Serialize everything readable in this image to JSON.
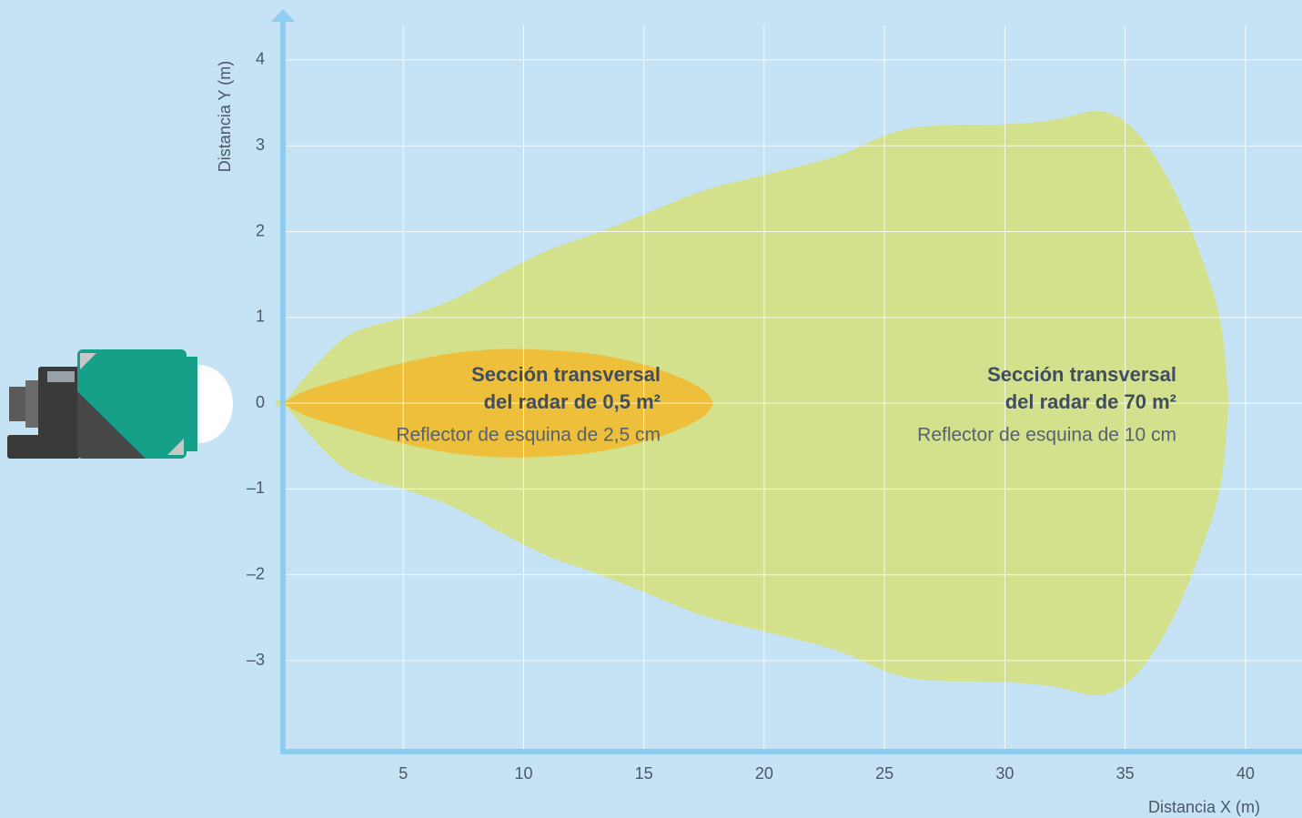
{
  "chart_data": {
    "type": "band-area",
    "xlabel": "Distancia X (m)",
    "ylabel": "Distancia Y (m)",
    "xlim": [
      0,
      42.35
    ],
    "ylim": [
      -4.06,
      4.54
    ],
    "xticks": [
      5,
      10,
      15,
      20,
      25,
      30,
      35,
      40
    ],
    "yticks": [
      {
        "value": -3,
        "label": "–3"
      },
      {
        "value": -2,
        "label": "–2"
      },
      {
        "value": -1,
        "label": "–1"
      },
      0,
      1,
      2,
      3,
      4
    ],
    "grid": true,
    "series": [
      {
        "name": "Sección transversal del radar de 70 m²",
        "label_lines": [
          "Sección transversal",
          "del radar de 70 m²"
        ],
        "note": "Reflector de esquina de 10 cm",
        "color": "#d4e183",
        "x": [
          0,
          2.5,
          5,
          7,
          9,
          11,
          13,
          15,
          17.5,
          20,
          23,
          26,
          30,
          32,
          34,
          35.5,
          37,
          38.3,
          39,
          39.3
        ],
        "upper": [
          0,
          0.75,
          1.0,
          1.2,
          1.5,
          1.78,
          1.98,
          2.2,
          2.48,
          2.66,
          2.88,
          3.2,
          3.25,
          3.3,
          3.4,
          3.15,
          2.5,
          1.6,
          0.9,
          0
        ],
        "lower": [
          0,
          -0.75,
          -1.0,
          -1.2,
          -1.5,
          -1.78,
          -1.98,
          -2.2,
          -2.48,
          -2.66,
          -2.88,
          -3.2,
          -3.25,
          -3.3,
          -3.4,
          -3.15,
          -2.5,
          -1.6,
          -0.9,
          0
        ]
      },
      {
        "name": "Sección transversal del radar de 0,5 m²",
        "label_lines": [
          "Sección transversal",
          "del radar de 0,5 m²"
        ],
        "note": "Reflector de esquina de 2,5 cm",
        "color": "#f0bc33",
        "x": [
          0,
          1,
          3,
          5,
          7,
          9,
          11,
          13,
          15,
          16.5,
          17.5,
          17.9
        ],
        "upper": [
          0,
          0.15,
          0.32,
          0.47,
          0.58,
          0.63,
          0.62,
          0.57,
          0.45,
          0.3,
          0.15,
          0
        ],
        "lower": [
          0,
          -0.15,
          -0.32,
          -0.47,
          -0.58,
          -0.63,
          -0.62,
          -0.57,
          -0.45,
          -0.3,
          -0.15,
          0
        ]
      }
    ]
  }
}
